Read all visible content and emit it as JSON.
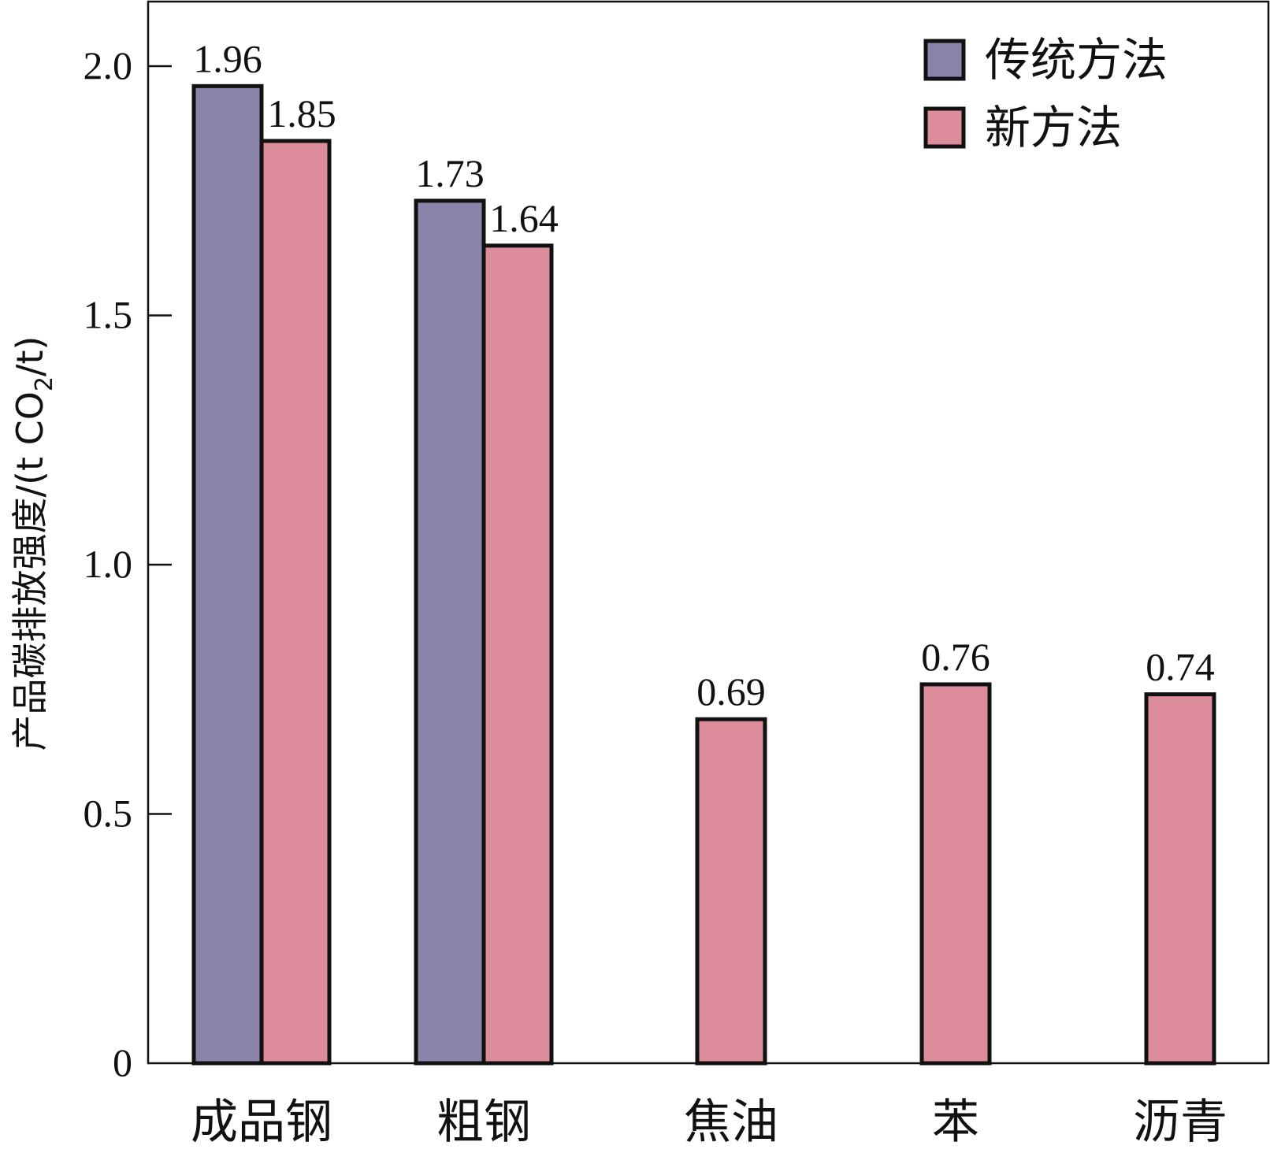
{
  "chart_data": {
    "type": "bar",
    "title": "",
    "xlabel": "",
    "ylabel_prefix": "产品碳排放强度/(t CO",
    "ylabel_sub": "2",
    "ylabel_suffix": "/t)",
    "ylim": [
      0,
      2.15
    ],
    "yticks": [
      0,
      0.5,
      1.0,
      1.5,
      2.0
    ],
    "ytick_labels": [
      "0",
      "0.5",
      "1.0",
      "1.5",
      "2.0"
    ],
    "categories": [
      "成品钢",
      "粗钢",
      "焦油",
      "苯",
      "沥青"
    ],
    "series": [
      {
        "name": "传统方法",
        "color": "#8a84a8",
        "values": [
          1.96,
          1.73,
          null,
          null,
          null
        ],
        "labels": [
          "1.96",
          "1.73",
          null,
          null,
          null
        ]
      },
      {
        "name": "新方法",
        "color": "#dc8c9a",
        "values": [
          1.85,
          1.64,
          0.69,
          0.76,
          0.74
        ],
        "labels": [
          "1.85",
          "1.64",
          "0.69",
          "0.76",
          "0.74"
        ]
      }
    ],
    "legend_position": "top-right",
    "grid": false
  }
}
